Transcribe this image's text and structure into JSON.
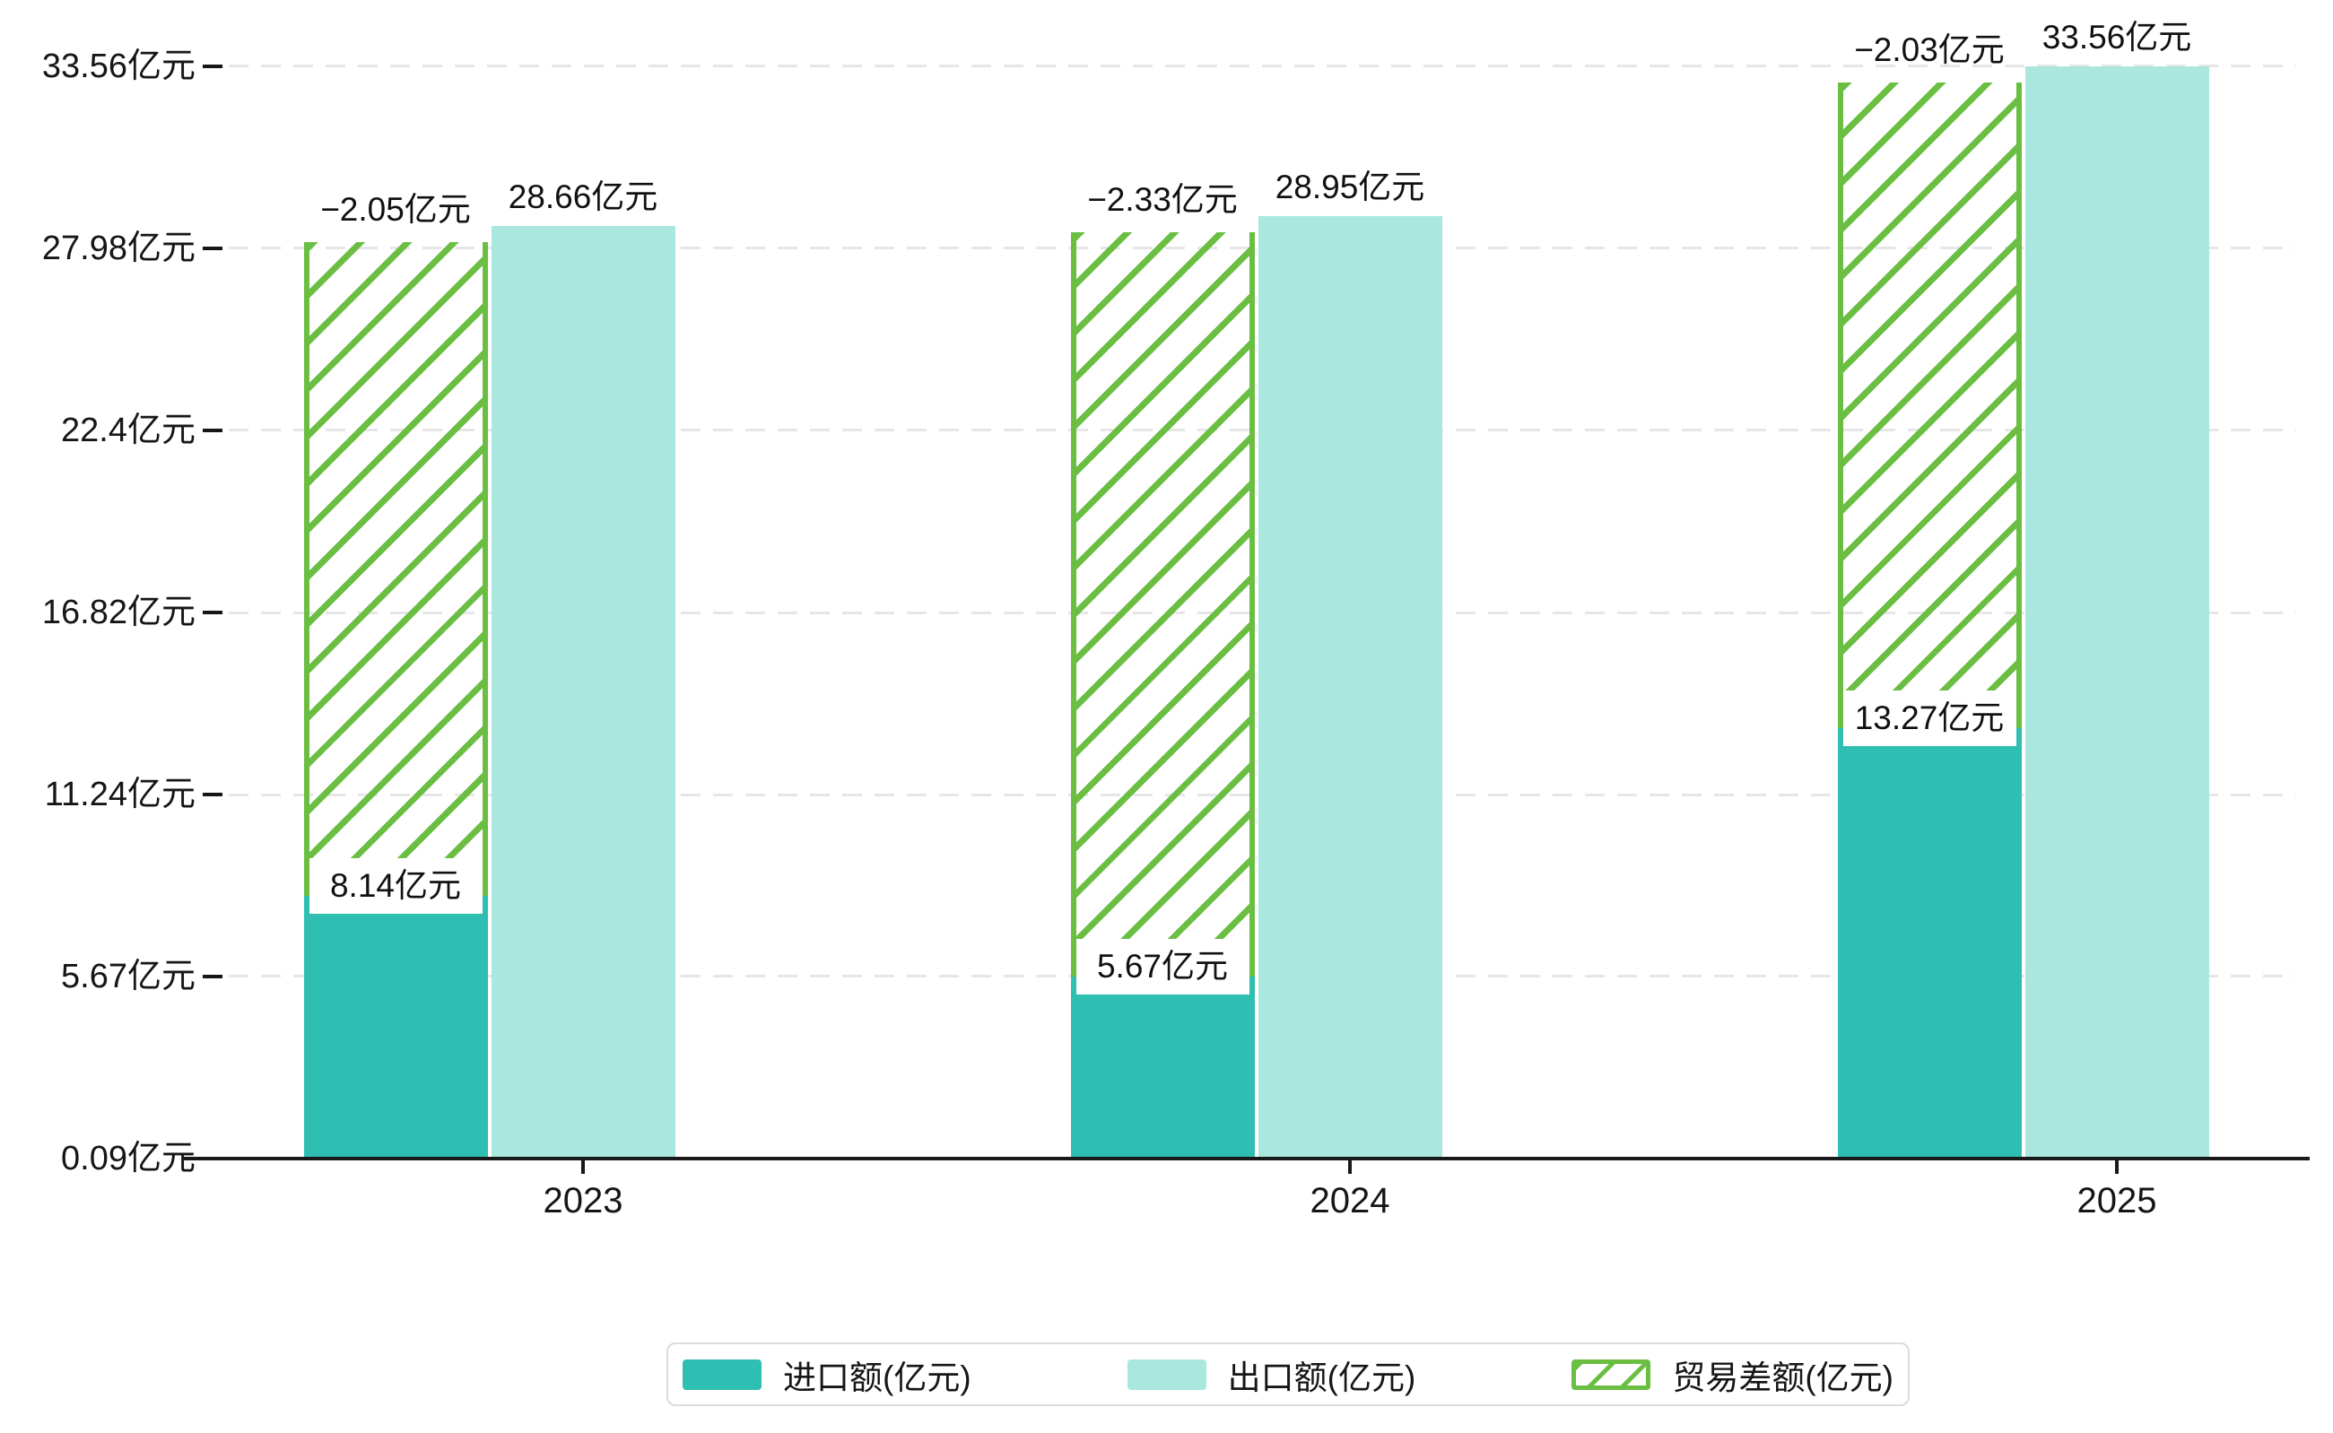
{
  "chart_data": {
    "type": "bar",
    "title": "",
    "xlabel": "",
    "ylabel": "",
    "grid": "dashed-horizontal",
    "categories": [
      "2023",
      "2024",
      "2025"
    ],
    "series": [
      {
        "name": "进口额(亿元)",
        "style": "solid",
        "color_key": "import",
        "values": [
          8.14,
          5.67,
          13.27
        ],
        "labels": [
          "8.14亿元",
          "5.67亿元",
          "13.27亿元"
        ]
      },
      {
        "name": "出口额(亿元)",
        "style": "solid",
        "color_key": "export",
        "values": [
          28.66,
          28.95,
          33.56
        ],
        "labels": [
          "28.66亿元",
          "28.95亿元",
          "33.56亿元"
        ]
      },
      {
        "name": "贸易差额(亿元)",
        "style": "hatched",
        "color_key": "balance",
        "values": [
          -2.05,
          -2.33,
          -2.03
        ],
        "labels": [
          "−2.05亿元",
          "−2.33亿元",
          "−2.03亿元"
        ]
      }
    ],
    "y_axis": {
      "min": 0.09,
      "max": 33.56,
      "tick_values": [
        0.09,
        5.67,
        11.24,
        16.82,
        22.4,
        27.98,
        33.56
      ],
      "tick_labels": [
        "0.09亿元",
        "5.67亿元",
        "11.24亿元",
        "16.82亿元",
        "22.4亿元",
        "27.98亿元",
        "33.56亿元"
      ]
    },
    "legend": {
      "position": "bottom",
      "items": [
        {
          "label": "进口额(亿元)",
          "swatch": "import"
        },
        {
          "label": "出口额(亿元)",
          "swatch": "export"
        },
        {
          "label": "贸易差额(亿元)",
          "swatch": "balance-hatched"
        }
      ]
    }
  },
  "colors": {
    "import": "#2fbfb2",
    "export": "#a9e7df",
    "balance": "#6abe42",
    "grid": "#e6e6e6",
    "axis": "#191919",
    "text": "#161616",
    "label_bg": "#ffffff",
    "legend_border": "#dcdcdc",
    "background": "#ffffff"
  }
}
